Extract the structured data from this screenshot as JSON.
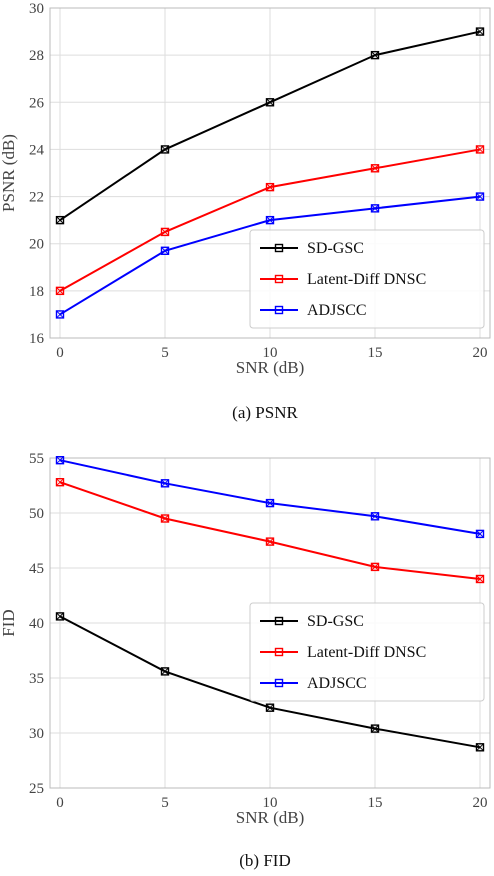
{
  "chart_data": [
    {
      "type": "line",
      "caption": "(a)  PSNR",
      "xlabel": "SNR (dB)",
      "ylabel": "PSNR (dB)",
      "x": [
        0,
        5,
        10,
        15,
        20
      ],
      "xlim": [
        0,
        20
      ],
      "ylim": [
        16,
        30
      ],
      "xticks": [
        0,
        5,
        10,
        15,
        20
      ],
      "yticks": [
        16,
        18,
        20,
        22,
        24,
        26,
        28,
        30
      ],
      "grid": true,
      "legend": "bottom-right",
      "series": [
        {
          "name": "SD-GSC",
          "color": "#000000",
          "values": [
            21.0,
            24.0,
            26.0,
            28.0,
            29.0
          ]
        },
        {
          "name": "Latent-Diff DNSC",
          "color": "#ff0000",
          "values": [
            18.0,
            20.5,
            22.4,
            23.2,
            24.0
          ]
        },
        {
          "name": "ADJSCC",
          "color": "#0000ff",
          "values": [
            17.0,
            19.7,
            21.0,
            21.5,
            22.0
          ]
        }
      ]
    },
    {
      "type": "line",
      "caption": "(b)  FID",
      "xlabel": "SNR (dB)",
      "ylabel": "FID",
      "x": [
        0,
        5,
        10,
        15,
        20
      ],
      "xlim": [
        0,
        20
      ],
      "ylim": [
        25,
        55
      ],
      "xticks": [
        0,
        5,
        10,
        15,
        20
      ],
      "yticks": [
        25,
        30,
        35,
        40,
        45,
        50,
        55
      ],
      "grid": true,
      "legend": "center-right",
      "series": [
        {
          "name": "SD-GSC",
          "color": "#000000",
          "values": [
            40.6,
            35.6,
            32.3,
            30.4,
            28.7
          ]
        },
        {
          "name": "Latent-Diff DNSC",
          "color": "#ff0000",
          "values": [
            52.8,
            49.5,
            47.4,
            45.1,
            44.0
          ]
        },
        {
          "name": "ADJSCC",
          "color": "#0000ff",
          "values": [
            54.8,
            52.7,
            50.9,
            49.7,
            48.1
          ]
        }
      ]
    }
  ]
}
